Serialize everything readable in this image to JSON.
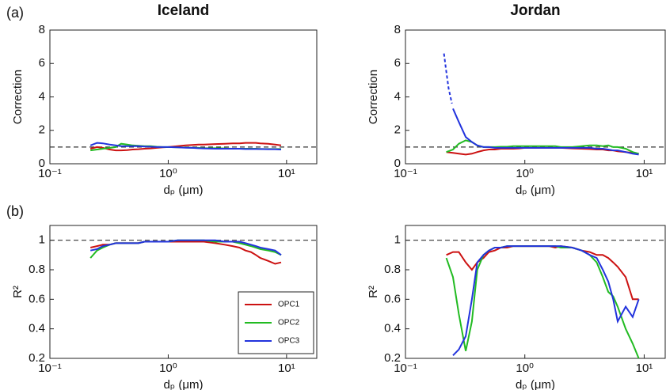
{
  "panel_labels": [
    "(a)",
    "(b)"
  ],
  "chart_data": [
    {
      "type": "line",
      "title": "Iceland",
      "xlabel": "dₚ (μm)",
      "ylabel": "Correction",
      "xscale": "log",
      "xlim": [
        0.1,
        18
      ],
      "xticks": [
        {
          "value": 0.1,
          "label": "10⁻¹"
        },
        {
          "value": 1,
          "label": "10⁰"
        },
        {
          "value": 10,
          "label": "10¹"
        }
      ],
      "ylim": [
        0,
        8
      ],
      "yticks": [
        0,
        2,
        4,
        6,
        8
      ],
      "hline": 1,
      "x": [
        0.22,
        0.25,
        0.28,
        0.32,
        0.36,
        0.4,
        0.45,
        0.5,
        0.56,
        0.63,
        0.71,
        0.8,
        0.9,
        1.0,
        1.2,
        1.4,
        1.6,
        1.8,
        2.0,
        2.5,
        3.0,
        3.5,
        4.0,
        4.5,
        5.0,
        5.5,
        6.0,
        7.0,
        8.0,
        9.0
      ],
      "series": [
        {
          "color": "#cc1111",
          "values": [
            0.9,
            1.0,
            0.95,
            0.85,
            0.8,
            0.8,
            0.82,
            0.85,
            0.87,
            0.9,
            0.92,
            0.95,
            0.98,
            1.0,
            1.05,
            1.1,
            1.12,
            1.15,
            1.15,
            1.18,
            1.2,
            1.22,
            1.22,
            1.25,
            1.25,
            1.25,
            1.22,
            1.2,
            1.15,
            1.1
          ]
        },
        {
          "color": "#22bb22",
          "values": [
            0.8,
            0.85,
            0.9,
            0.95,
            1.0,
            1.2,
            1.15,
            1.1,
            1.08,
            1.05,
            1.05,
            1.02,
            1.0,
            1.0,
            0.98,
            0.97,
            0.95,
            0.95,
            0.93,
            0.93,
            0.92,
            0.9,
            0.9,
            0.9,
            0.9,
            0.9,
            0.88,
            0.88,
            0.88,
            0.88
          ]
        },
        {
          "color": "#2233dd",
          "values": [
            1.1,
            1.25,
            1.22,
            1.15,
            1.1,
            1.05,
            1.05,
            1.05,
            1.05,
            1.03,
            1.02,
            1.0,
            1.0,
            1.0,
            0.98,
            0.96,
            0.95,
            0.93,
            0.92,
            0.9,
            0.9,
            0.9,
            0.9,
            0.88,
            0.88,
            0.88,
            0.88,
            0.87,
            0.87,
            0.85
          ]
        }
      ]
    },
    {
      "type": "line",
      "title": "Jordan",
      "xlabel": "dₚ (μm)",
      "ylabel": "Correction",
      "xscale": "log",
      "xlim": [
        0.1,
        15
      ],
      "xticks": [
        {
          "value": 0.1,
          "label": "10⁻¹"
        },
        {
          "value": 1,
          "label": "10⁰"
        },
        {
          "value": 10,
          "label": "10¹"
        }
      ],
      "ylim": [
        0,
        8
      ],
      "yticks": [
        0,
        2,
        4,
        6,
        8
      ],
      "hline": 1,
      "x": [
        0.22,
        0.25,
        0.28,
        0.32,
        0.36,
        0.4,
        0.45,
        0.5,
        0.56,
        0.63,
        0.71,
        0.8,
        0.9,
        1.0,
        1.2,
        1.4,
        1.6,
        1.8,
        2.0,
        2.5,
        3.0,
        3.5,
        4.0,
        4.5,
        5.0,
        5.5,
        6.0,
        7.0,
        8.0,
        9.0
      ],
      "series": [
        {
          "color": "#cc1111",
          "values": [
            0.7,
            0.65,
            0.6,
            0.55,
            0.6,
            0.7,
            0.8,
            0.85,
            0.85,
            0.9,
            0.9,
            0.9,
            0.92,
            0.95,
            0.95,
            0.95,
            0.95,
            0.95,
            0.95,
            0.92,
            0.9,
            0.88,
            0.85,
            0.85,
            0.8,
            0.8,
            0.75,
            0.7,
            0.65,
            0.6
          ]
        },
        {
          "color": "#22bb22",
          "values": [
            0.7,
            0.85,
            1.2,
            1.4,
            1.3,
            1.1,
            1.0,
            1.0,
            1.0,
            1.02,
            1.02,
            1.05,
            1.05,
            1.05,
            1.05,
            1.05,
            1.05,
            1.05,
            1.0,
            1.0,
            1.05,
            1.1,
            1.1,
            1.05,
            1.1,
            1.0,
            1.0,
            0.9,
            0.7,
            0.6
          ]
        },
        {
          "color": "#2233dd",
          "values": [
            null,
            3.3,
            2.5,
            1.6,
            1.3,
            1.1,
            1.0,
            1.0,
            0.95,
            0.95,
            0.95,
            0.95,
            0.95,
            0.95,
            0.95,
            0.95,
            0.95,
            0.95,
            0.95,
            0.95,
            0.95,
            0.95,
            0.9,
            0.9,
            0.85,
            0.8,
            0.8,
            0.7,
            0.6,
            0.55
          ]
        }
      ],
      "extrapolation": {
        "color": "#2233dd",
        "x": [
          0.21,
          0.22,
          0.23,
          0.245
        ],
        "values": [
          6.6,
          5.5,
          4.5,
          3.6
        ]
      }
    },
    {
      "type": "line",
      "xlabel": "dₚ (μm)",
      "ylabel": "R²",
      "xscale": "log",
      "xlim": [
        0.1,
        18
      ],
      "xticks": [
        {
          "value": 0.1,
          "label": "10⁻¹"
        },
        {
          "value": 1,
          "label": "10⁰"
        },
        {
          "value": 10,
          "label": "10¹"
        }
      ],
      "ylim": [
        0.2,
        1.1
      ],
      "yticks": [
        0.2,
        0.4,
        0.6,
        0.8,
        1
      ],
      "hline": 1,
      "legend": "lower right",
      "x": [
        0.22,
        0.25,
        0.28,
        0.32,
        0.36,
        0.4,
        0.45,
        0.5,
        0.56,
        0.63,
        0.71,
        0.8,
        0.9,
        1.0,
        1.2,
        1.4,
        1.6,
        1.8,
        2.0,
        2.5,
        3.0,
        3.5,
        4.0,
        4.5,
        5.0,
        5.5,
        6.0,
        7.0,
        8.0,
        9.0
      ],
      "series": [
        {
          "name": "OPC1",
          "color": "#cc1111",
          "values": [
            0.95,
            0.96,
            0.97,
            0.97,
            0.98,
            0.98,
            0.98,
            0.98,
            0.98,
            0.99,
            0.99,
            0.99,
            0.99,
            0.99,
            0.99,
            0.99,
            0.99,
            0.99,
            0.99,
            0.98,
            0.97,
            0.96,
            0.95,
            0.93,
            0.92,
            0.9,
            0.88,
            0.86,
            0.84,
            0.85
          ]
        },
        {
          "name": "OPC2",
          "color": "#22bb22",
          "values": [
            0.88,
            0.93,
            0.95,
            0.97,
            0.98,
            0.98,
            0.98,
            0.98,
            0.98,
            0.99,
            0.99,
            0.99,
            0.99,
            0.99,
            1.0,
            1.0,
            1.0,
            1.0,
            1.0,
            0.99,
            0.99,
            0.99,
            0.98,
            0.97,
            0.96,
            0.95,
            0.94,
            0.93,
            0.92,
            0.9
          ]
        },
        {
          "name": "OPC3",
          "color": "#2233dd",
          "values": [
            0.93,
            0.94,
            0.96,
            0.97,
            0.98,
            0.98,
            0.98,
            0.98,
            0.98,
            0.99,
            0.99,
            0.99,
            0.99,
            0.99,
            1.0,
            1.0,
            1.0,
            1.0,
            1.0,
            1.0,
            0.99,
            0.99,
            0.99,
            0.98,
            0.97,
            0.96,
            0.95,
            0.94,
            0.93,
            0.9
          ]
        }
      ]
    },
    {
      "type": "line",
      "xlabel": "dₚ (μm)",
      "ylabel": "R²",
      "xscale": "log",
      "xlim": [
        0.1,
        15
      ],
      "xticks": [
        {
          "value": 0.1,
          "label": "10⁻¹"
        },
        {
          "value": 1,
          "label": "10⁰"
        },
        {
          "value": 10,
          "label": "10¹"
        }
      ],
      "ylim": [
        0.2,
        1.1
      ],
      "yticks": [
        0.2,
        0.4,
        0.6,
        0.8,
        1
      ],
      "hline": 1,
      "x": [
        0.22,
        0.25,
        0.28,
        0.32,
        0.36,
        0.4,
        0.45,
        0.5,
        0.56,
        0.63,
        0.71,
        0.8,
        0.9,
        1.0,
        1.2,
        1.4,
        1.6,
        1.8,
        2.0,
        2.5,
        3.0,
        3.5,
        4.0,
        4.5,
        5.0,
        5.5,
        6.0,
        7.0,
        8.0,
        9.0
      ],
      "series": [
        {
          "color": "#cc1111",
          "values": [
            0.9,
            0.92,
            0.92,
            0.85,
            0.8,
            0.85,
            0.88,
            0.92,
            0.93,
            0.95,
            0.95,
            0.96,
            0.96,
            0.96,
            0.96,
            0.96,
            0.96,
            0.95,
            0.96,
            0.95,
            0.93,
            0.92,
            0.9,
            0.9,
            0.88,
            0.85,
            0.82,
            0.75,
            0.6,
            0.6
          ]
        },
        {
          "color": "#22bb22",
          "values": [
            0.88,
            0.75,
            0.5,
            0.25,
            0.45,
            0.8,
            0.9,
            0.93,
            0.95,
            0.95,
            0.96,
            0.96,
            0.96,
            0.96,
            0.96,
            0.96,
            0.96,
            0.96,
            0.95,
            0.95,
            0.93,
            0.9,
            0.85,
            0.75,
            0.65,
            0.62,
            0.55,
            0.4,
            0.3,
            0.2
          ]
        },
        {
          "color": "#2233dd",
          "values": [
            null,
            0.22,
            0.26,
            0.35,
            0.6,
            0.85,
            0.9,
            0.93,
            0.95,
            0.95,
            0.96,
            0.96,
            0.96,
            0.96,
            0.96,
            0.96,
            0.96,
            0.96,
            0.96,
            0.95,
            0.93,
            0.9,
            0.88,
            0.8,
            0.72,
            0.6,
            0.45,
            0.55,
            0.48,
            0.6
          ]
        }
      ]
    }
  ]
}
